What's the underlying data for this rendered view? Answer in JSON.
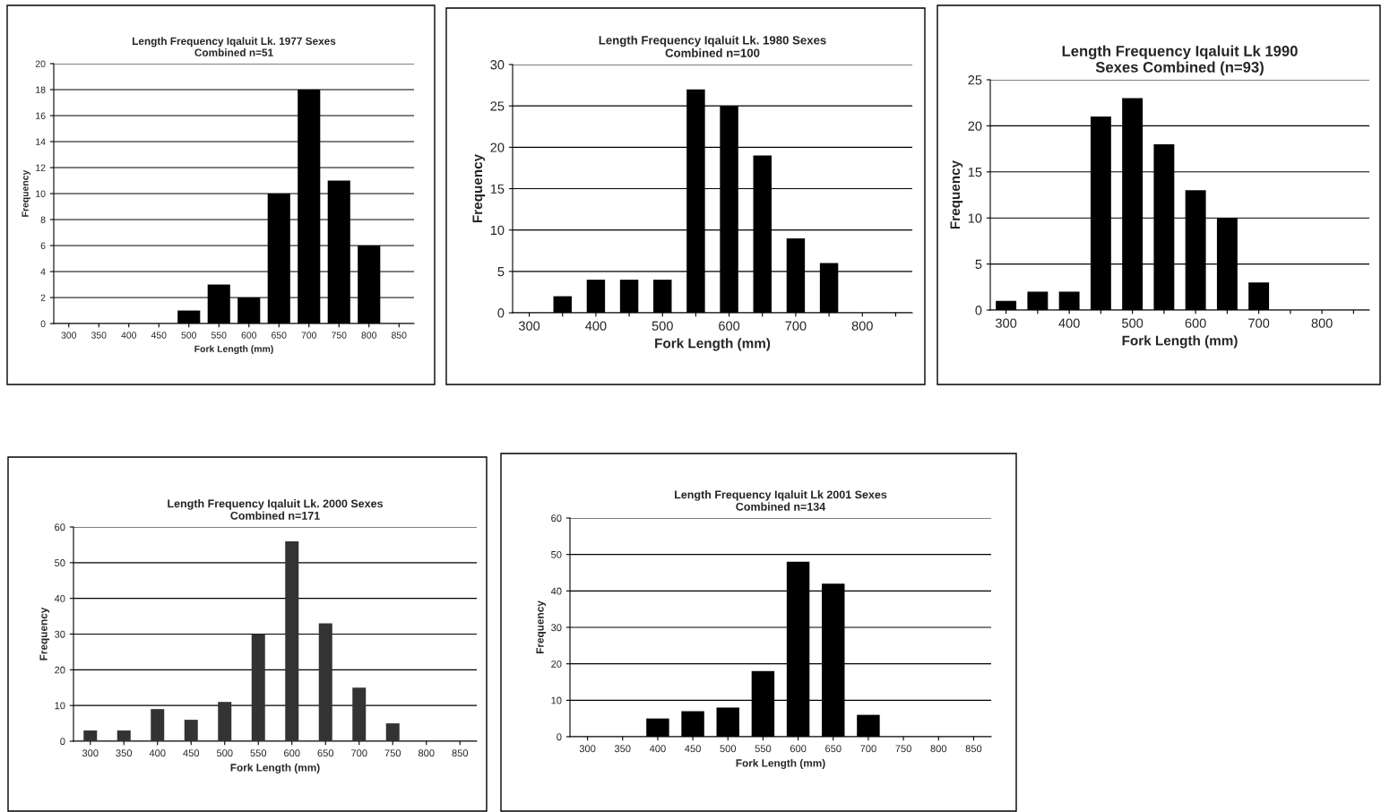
{
  "chart_data": [
    {
      "type": "bar",
      "title": "Length Frequency Iqaluit Lk. 1977 Sexes\nCombined n=51",
      "xlabel": "Fork Length (mm)",
      "ylabel": "Frequency",
      "categories": [
        "300",
        "350",
        "400",
        "450",
        "500",
        "550",
        "600",
        "650",
        "700",
        "750",
        "800",
        "850"
      ],
      "values": [
        0,
        0,
        0,
        0,
        1,
        3,
        2,
        10,
        18,
        11,
        6,
        0
      ],
      "color": "#000000",
      "ylim": [
        0,
        20
      ],
      "yticks": [
        0,
        2,
        4,
        6,
        8,
        10,
        12,
        14,
        16,
        18,
        20
      ],
      "grid": "y",
      "legend": false
    },
    {
      "type": "bar",
      "title": "Length Frequency Iqaluit Lk. 1980 Sexes\nCombined n=100",
      "xlabel": "Fork Length (mm)",
      "ylabel": "Frequency",
      "categories": [
        "300",
        null,
        "400",
        null,
        "500",
        null,
        "600",
        null,
        "700",
        null,
        "800",
        null
      ],
      "values": [
        0,
        2,
        4,
        4,
        4,
        27,
        25,
        19,
        9,
        6,
        0,
        0
      ],
      "color": "#000000",
      "ylim": [
        0,
        30
      ],
      "yticks": [
        0,
        5,
        10,
        15,
        20,
        25,
        30
      ],
      "grid": "y",
      "legend": false
    },
    {
      "type": "bar",
      "title": "Length Frequency Iqaluit Lk 1990\nSexes Combined (n=93)",
      "xlabel": "Fork Length (mm)",
      "ylabel": "Frequency",
      "categories": [
        "300",
        null,
        "400",
        null,
        "500",
        null,
        "600",
        null,
        "700",
        null,
        "800",
        null
      ],
      "values": [
        1,
        2,
        2,
        21,
        23,
        18,
        13,
        10,
        3,
        0,
        0,
        0
      ],
      "color": "#000000",
      "ylim": [
        0,
        25
      ],
      "yticks": [
        0,
        5,
        10,
        15,
        20,
        25
      ],
      "grid": "y",
      "legend": false
    },
    {
      "type": "bar",
      "title": "Length Frequency Iqaluit Lk. 2000 Sexes\nCombined n=171",
      "xlabel": "Fork Length (mm)",
      "ylabel": "Frequency",
      "categories": [
        "300",
        "350",
        "400",
        "450",
        "500",
        "550",
        "600",
        "650",
        "700",
        "750",
        "800",
        "850"
      ],
      "values": [
        3,
        3,
        9,
        6,
        11,
        30,
        56,
        33,
        15,
        5,
        0,
        0
      ],
      "color": "#333333",
      "ylim": [
        0,
        60
      ],
      "yticks": [
        0,
        10,
        20,
        30,
        40,
        50,
        60
      ],
      "grid": "y",
      "legend": false
    },
    {
      "type": "bar",
      "title": "Length Frequency Iqaluit Lk 2001 Sexes\nCombined n=134",
      "xlabel": "Fork Length (mm)",
      "ylabel": "Frequency",
      "categories": [
        "300",
        "350",
        "400",
        "450",
        "500",
        "550",
        "600",
        "650",
        "700",
        "750",
        "800",
        "850"
      ],
      "values": [
        0,
        0,
        5,
        7,
        8,
        18,
        48,
        42,
        6,
        0,
        0,
        0
      ],
      "color": "#000000",
      "ylim": [
        0,
        60
      ],
      "yticks": [
        0,
        10,
        20,
        30,
        40,
        50,
        60
      ],
      "grid": "y",
      "legend": false
    }
  ]
}
